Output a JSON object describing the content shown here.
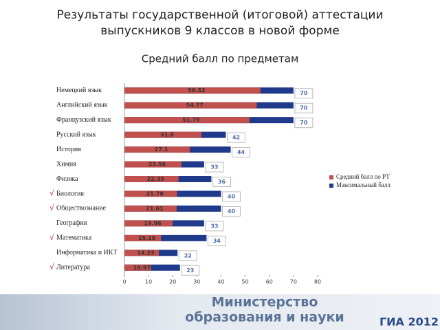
{
  "chart_data": {
    "type": "bar",
    "orientation": "horizontal",
    "title": "Результаты государственной (итоговой) аттестации выпускников 9 классов в новой форме",
    "subtitle": "Средний балл по предметам",
    "categories": [
      "Немецкий язык",
      "Английский язык",
      "Французский язык",
      "Русский язык",
      "История",
      "Химия",
      "Физика",
      "Биология",
      "Обществознание",
      "География",
      "Математика",
      "Информатика и ИКТ",
      "Литература"
    ],
    "category_marks": [
      null,
      null,
      null,
      null,
      null,
      null,
      null,
      "√",
      "√",
      null,
      "√",
      null,
      "√"
    ],
    "series": [
      {
        "name": "Средний балл по РТ",
        "color": "#c0504d",
        "values": [
          56.32,
          54.77,
          51.79,
          31.9,
          27.1,
          23.56,
          22.39,
          21.78,
          21.61,
          19.96,
          15.15,
          14.23,
          10.97
        ]
      },
      {
        "name": "Максимальный балл",
        "color": "#1f3a8a",
        "values": [
          70,
          70,
          70,
          42,
          44,
          33,
          36,
          40,
          40,
          33,
          34,
          22,
          23
        ]
      }
    ],
    "xlim": [
      0,
      80
    ],
    "xticks": [
      0,
      10,
      20,
      30,
      40,
      50,
      60,
      70,
      80
    ],
    "legend": "right",
    "footer": {
      "line1": "Министерство",
      "line2": "образования и науки",
      "badge": "ГИА 2012"
    }
  }
}
